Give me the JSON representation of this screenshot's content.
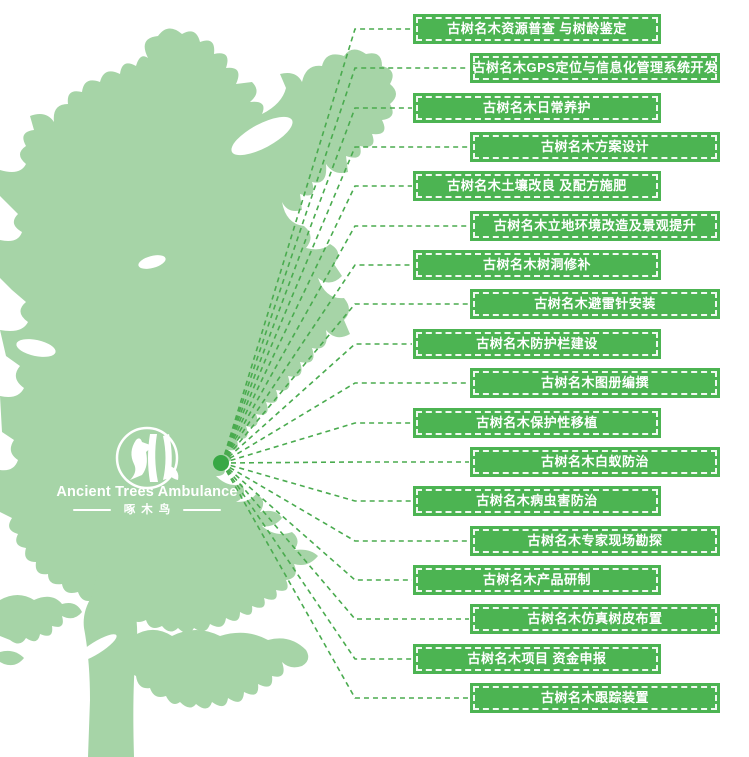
{
  "colors": {
    "banner_green": "#4cb452",
    "tree_green": "#a6d4a7",
    "line_green": "#4aab4f",
    "dot_green": "#38a845",
    "text_white": "#ffffff"
  },
  "logo": {
    "title": "Ancient Trees Ambulance",
    "subtitle": "啄木鸟",
    "icon": "woodpecker-in-circle"
  },
  "services": {
    "items": [
      {
        "label": "古树名木资源普查 与树龄鉴定"
      },
      {
        "label": "古树名木GPS定位与信息化管理系统开发"
      },
      {
        "label": "古树名木日常养护"
      },
      {
        "label": "古树名木方案设计"
      },
      {
        "label": "古树名木土壤改良 及配方施肥"
      },
      {
        "label": "古树名木立地环境改造及景观提升"
      },
      {
        "label": "古树名木树洞修补"
      },
      {
        "label": "古树名木避雷针安装"
      },
      {
        "label": "古树名木防护栏建设"
      },
      {
        "label": "古树名木图册编撰"
      },
      {
        "label": "古树名木保护性移植"
      },
      {
        "label": "古树名木白蚁防治"
      },
      {
        "label": "古树名木病虫害防治"
      },
      {
        "label": "古树名木专家现场勘探"
      },
      {
        "label": "古树名木产品研制"
      },
      {
        "label": "古树名木仿真树皮布置"
      },
      {
        "label": "古树名木项目 资金申报"
      },
      {
        "label": "古树名木跟踪装置"
      }
    ]
  }
}
